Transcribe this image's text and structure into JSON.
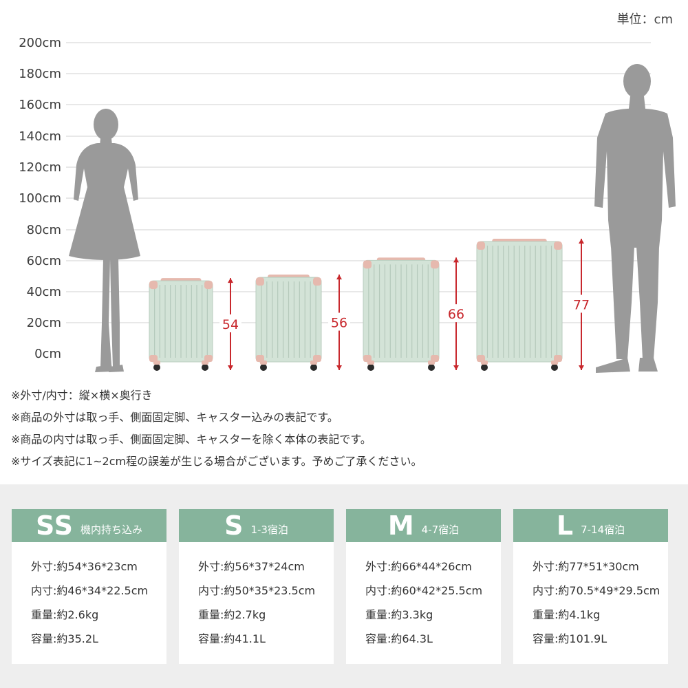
{
  "unit_label": "単位：cm",
  "y_axis": {
    "labels": [
      "200cm",
      "180cm",
      "160cm",
      "140cm",
      "120cm",
      "100cm",
      "80cm",
      "60cm",
      "40cm",
      "20cm",
      "0cm"
    ]
  },
  "suitcases": [
    {
      "size": "SS",
      "height_value": 54,
      "height_label": "54"
    },
    {
      "size": "S",
      "height_value": 56,
      "height_label": "56"
    },
    {
      "size": "M",
      "height_value": 66,
      "height_label": "66"
    },
    {
      "size": "L",
      "height_value": 77,
      "height_label": "77"
    }
  ],
  "notes": [
    "※外寸/内寸：縦×横×奥行き",
    "※商品の外寸は取っ手、側面固定脚、キャスター込みの表記です。",
    "※商品の内寸は取っ手、側面固定脚、キャスターを除く本体の表記です。",
    "※サイズ表記に1~2cm程の誤差が生じる場合がございます。予めご了承ください。"
  ],
  "spec_cards": [
    {
      "size": "SS",
      "subtitle": "機内持ち込み",
      "outer": "外寸:約54*36*23cm",
      "inner": "内寸:約46*34*22.5cm",
      "weight": "重量:約2.6kg",
      "capacity": "容量:約35.2L"
    },
    {
      "size": "S",
      "subtitle": "1-3宿泊",
      "outer": "外寸:約56*37*24cm",
      "inner": "内寸:約50*35*23.5cm",
      "weight": "重量:約2.7kg",
      "capacity": "容量:約41.1L"
    },
    {
      "size": "M",
      "subtitle": "4-7宿泊",
      "outer": "外寸:約66*44*26cm",
      "inner": "内寸:約60*42*25.5cm",
      "weight": "重量:約3.3kg",
      "capacity": "容量:約64.3L"
    },
    {
      "size": "L",
      "subtitle": "7-14宿泊",
      "outer": "外寸:約77*51*30cm",
      "inner": "内寸:約70.5*49*29.5cm",
      "weight": "重量:約4.1kg",
      "capacity": "容量:約101.9L"
    }
  ],
  "colors": {
    "accent_green": "#86b49c",
    "suitcase_body": "#d3e3d7",
    "suitcase_trim": "#e6b9ae",
    "dimension_red": "#c8282d",
    "silhouette": "#9a9a9a",
    "band_background": "#eeeeee"
  }
}
